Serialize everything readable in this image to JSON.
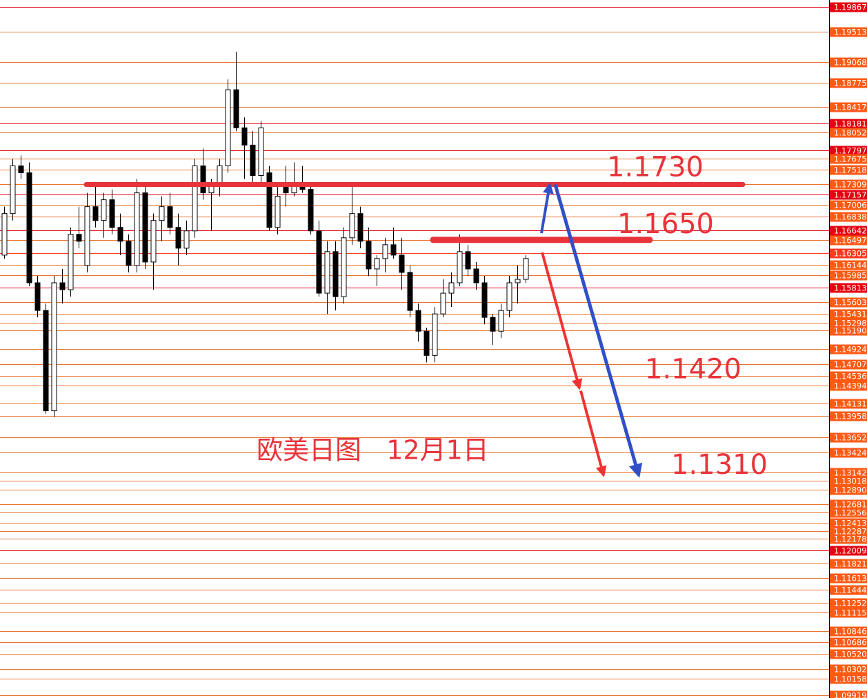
{
  "chart_data": {
    "type": "candlestick",
    "title": "欧美日图   12月1日",
    "open": [
      1.1628,
      1.1688,
      1.1757,
      1.1747,
      1.1588,
      1.1548,
      1.1403,
      1.1588,
      1.1578,
      1.1658,
      1.1613,
      1.1698,
      1.1678,
      1.1708,
      1.1668,
      1.1648,
      1.1613,
      1.1718,
      1.1618,
      1.1678,
      1.1698,
      1.1668,
      1.1638,
      1.1663,
      1.1757,
      1.1718,
      1.1728,
      1.1757,
      1.1867,
      1.1812,
      1.1787,
      1.1743,
      1.1747,
      1.1668,
      1.1728,
      1.1718,
      1.1733,
      1.1723,
      1.1663,
      1.1573,
      1.1633,
      1.1568,
      1.1653,
      1.1688,
      1.1648,
      1.1608,
      1.1623,
      1.1643,
      1.1628,
      1.1603,
      1.1548,
      1.1518,
      1.1483,
      1.1543,
      1.1573,
      1.1588,
      1.1633,
      1.1608,
      1.1588,
      1.1538,
      1.1518,
      1.1548,
      1.1588,
      1.1593
    ],
    "high": [
      1.1698,
      1.1767,
      1.1772,
      1.1762,
      1.1598,
      1.1558,
      1.1598,
      1.1608,
      1.1668,
      1.1698,
      1.1718,
      1.1728,
      1.1718,
      1.1723,
      1.1688,
      1.1658,
      1.1738,
      1.1728,
      1.1688,
      1.1713,
      1.1718,
      1.1688,
      1.1678,
      1.1767,
      1.1782,
      1.1738,
      1.1767,
      1.1882,
      1.1922,
      1.1827,
      1.1807,
      1.1822,
      1.1757,
      1.1728,
      1.1757,
      1.1762,
      1.1757,
      1.1728,
      1.1678,
      1.1648,
      1.1648,
      1.1668,
      1.1728,
      1.1698,
      1.1668,
      1.1628,
      1.1653,
      1.1668,
      1.1653,
      1.1613,
      1.1558,
      1.1523,
      1.1553,
      1.1593,
      1.1603,
      1.1658,
      1.1643,
      1.1618,
      1.1598,
      1.1543,
      1.1558,
      1.1598,
      1.1613,
      1.1628
    ],
    "low": [
      1.1623,
      1.1678,
      1.1738,
      1.1583,
      1.1538,
      1.1399,
      1.1394,
      1.1558,
      1.1568,
      1.1638,
      1.1603,
      1.1668,
      1.1653,
      1.1658,
      1.1628,
      1.1603,
      1.1603,
      1.1608,
      1.1578,
      1.1648,
      1.1658,
      1.1613,
      1.1628,
      1.1653,
      1.1708,
      1.1663,
      1.1713,
      1.1747,
      1.1807,
      1.1738,
      1.1733,
      1.1733,
      1.1663,
      1.1658,
      1.1698,
      1.1713,
      1.1718,
      1.1658,
      1.1568,
      1.1543,
      1.1548,
      1.1558,
      1.1643,
      1.1638,
      1.1598,
      1.1583,
      1.1603,
      1.1623,
      1.1578,
      1.1538,
      1.1503,
      1.1473,
      1.1473,
      1.1538,
      1.1553,
      1.1583,
      1.1598,
      1.1578,
      1.1528,
      1.1498,
      1.1508,
      1.1538,
      1.1558,
      1.1588
    ],
    "close": [
      1.1688,
      1.1757,
      1.1747,
      1.1588,
      1.1548,
      1.1403,
      1.1588,
      1.1578,
      1.1658,
      1.1648,
      1.1698,
      1.1678,
      1.1708,
      1.1668,
      1.1648,
      1.1613,
      1.1718,
      1.1618,
      1.1678,
      1.1698,
      1.1668,
      1.1638,
      1.1663,
      1.1757,
      1.1718,
      1.1728,
      1.1757,
      1.1867,
      1.1812,
      1.1787,
      1.1743,
      1.1812,
      1.1668,
      1.1713,
      1.1718,
      1.1733,
      1.1723,
      1.1663,
      1.1573,
      1.1633,
      1.1568,
      1.1653,
      1.1688,
      1.1648,
      1.1608,
      1.1623,
      1.1643,
      1.1628,
      1.1603,
      1.1548,
      1.1518,
      1.1483,
      1.1543,
      1.1573,
      1.1588,
      1.1633,
      1.1608,
      1.1588,
      1.1538,
      1.1518,
      1.1548,
      1.1588,
      1.1593,
      1.1623
    ],
    "up_color": "#ffffff",
    "down_color": "#000000",
    "ylim": [
      1.09879,
      1.19967
    ],
    "yticks": [
      1.19867,
      1.19513,
      1.19068,
      1.18775,
      1.18417,
      1.18181,
      1.18052,
      1.17797,
      1.17675,
      1.17518,
      1.17309,
      1.17157,
      1.17006,
      1.16838,
      1.16642,
      1.16497,
      1.16305,
      1.16144,
      1.15985,
      1.15813,
      1.15603,
      1.15431,
      1.15298,
      {
        "value": 1.1519,
        "label": "1.15190"
      },
      1.14924,
      1.14707,
      1.14536,
      1.14394,
      1.14131,
      1.13958,
      1.13652,
      1.13424,
      1.13142,
      1.13018,
      {
        "value": 1.1289,
        "label": "1.12890"
      },
      1.12681,
      1.12556,
      1.12413,
      1.12287,
      1.12178,
      1.12009,
      1.11821,
      1.11613,
      1.11444,
      1.11252,
      1.11115,
      1.10846,
      1.10686,
      {
        "value": 1.1052,
        "label": "1.10520"
      },
      1.10302,
      1.10158,
      1.09919
    ],
    "tick_colors": [
      "#e4000f",
      "#ff5a14",
      "#ff5a14",
      "#ff5a14",
      "#ff5a14",
      "#e4000f",
      "#ff5a14",
      "#e4000f",
      "#ff5a14",
      "#ff5a14",
      "#ff5a14",
      "#e4000f",
      "#ff5a14",
      "#ff5a14",
      "#e4000f",
      "#ff5a14",
      "#ff3a20",
      "#ff5a14",
      "#ff5a14",
      "#e4000f",
      "#ff5a14",
      "#ff5a14",
      "#ff5a14",
      "#ff5a14",
      "#ff5a14",
      "#ff5a14",
      "#ff5a14",
      "#ff5a14",
      "#ff5a14",
      "#ff5a14",
      "#ff5a14",
      "#ff5a14",
      "#ff5a14",
      "#ff5a14",
      "#ff5a14",
      "#ff5a14",
      "#ff5a14",
      "#ff5a14",
      "#ff5a14",
      "#ff5a14",
      "#e4000f",
      "#ff5a14",
      "#ff5a14",
      "#ff5a14",
      "#ff5a14",
      "#ff5a14",
      "#ff5a14",
      "#ff5a14",
      "#ff5a14",
      "#ff5a14",
      "#ff5a14",
      "#ff5a14"
    ],
    "levels": [
      {
        "label": "1.1730",
        "value": 1.173
      },
      {
        "label": "1.1650",
        "value": 1.165
      }
    ],
    "targets": [
      {
        "label": "1.1420",
        "value": 1.142
      },
      {
        "label": "1.1310",
        "value": 1.131
      }
    ],
    "annotation_color": "#e8333a",
    "bear_arrow_color": "#ee3333",
    "bull_arrow_color": "#3050c8"
  }
}
